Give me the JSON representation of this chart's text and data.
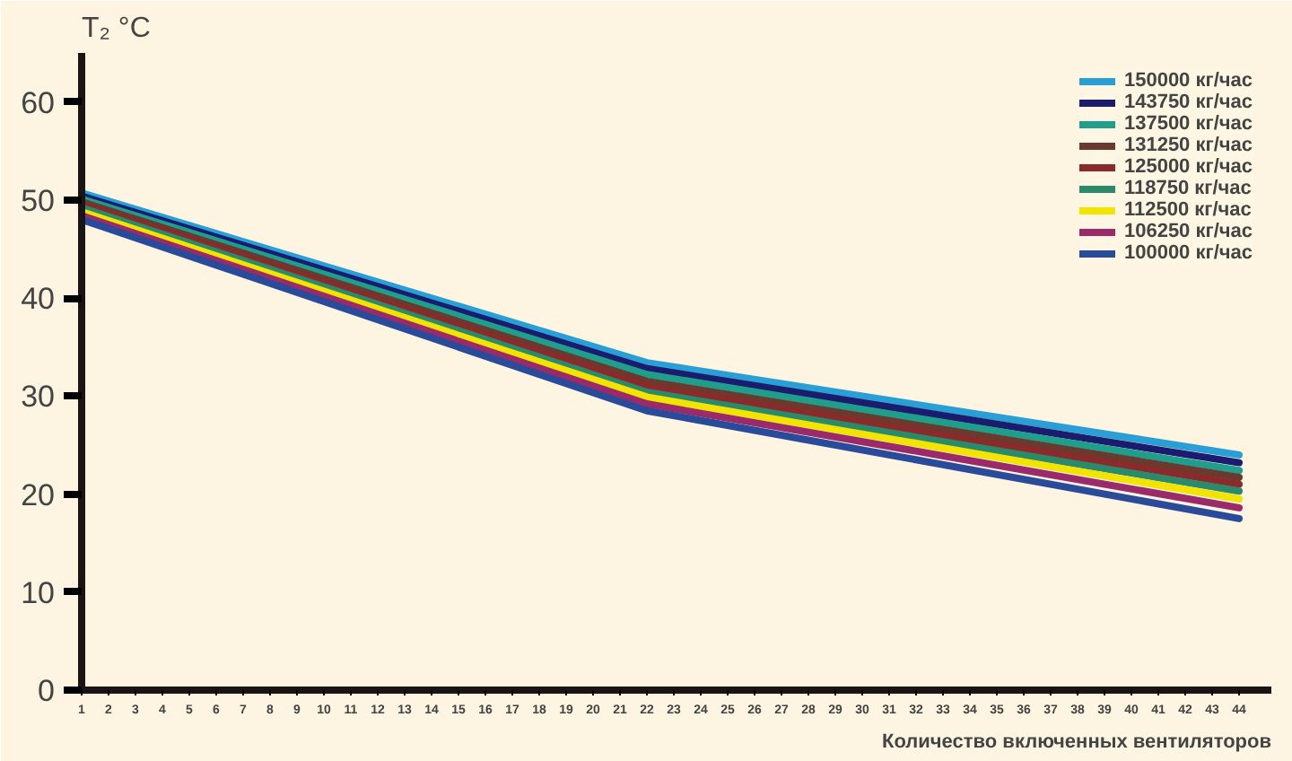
{
  "chart_data": {
    "type": "line",
    "ylabel": "T₂ °C",
    "xlabel": "Количество включенных вентиляторов",
    "x": [
      1,
      22,
      44
    ],
    "xlim": [
      1,
      45.2
    ],
    "xticks": [
      1,
      2,
      3,
      4,
      5,
      6,
      7,
      8,
      9,
      10,
      11,
      12,
      13,
      14,
      15,
      16,
      17,
      18,
      19,
      20,
      21,
      22,
      23,
      24,
      25,
      26,
      27,
      28,
      29,
      30,
      31,
      32,
      33,
      34,
      35,
      36,
      37,
      38,
      39,
      40,
      41,
      42,
      43,
      44
    ],
    "ylim": [
      0,
      65
    ],
    "yticks": [
      0,
      10,
      20,
      30,
      40,
      50,
      60
    ],
    "grid": false,
    "legend": "top right",
    "marker": "none",
    "line_style": "solid",
    "series": [
      {
        "name": "150000 кг/час",
        "color": "#2a9fd6",
        "values": [
          50.7,
          33.4,
          24.0
        ]
      },
      {
        "name": "143750 кг/час",
        "color": "#1c1c6e",
        "values": [
          50.4,
          32.8,
          23.2
        ]
      },
      {
        "name": "137500 кг/час",
        "color": "#1f9e8c",
        "values": [
          50.1,
          32.2,
          22.4
        ]
      },
      {
        "name": "131250 кг/час",
        "color": "#6b3a2e",
        "values": [
          49.8,
          31.5,
          21.7
        ]
      },
      {
        "name": "125000 кг/час",
        "color": "#8a2a2a",
        "values": [
          49.5,
          31.0,
          21.0
        ]
      },
      {
        "name": "118750 кг/час",
        "color": "#2a8a6a",
        "values": [
          49.2,
          30.4,
          20.3
        ]
      },
      {
        "name": "112500 кг/час",
        "color": "#f2e400",
        "values": [
          48.8,
          29.9,
          19.5
        ]
      },
      {
        "name": "106250 кг/час",
        "color": "#9a2a6a",
        "values": [
          48.4,
          29.2,
          18.6
        ]
      },
      {
        "name": "100000 кг/час",
        "color": "#2a4a9a",
        "values": [
          48.0,
          28.5,
          17.5
        ]
      }
    ]
  }
}
